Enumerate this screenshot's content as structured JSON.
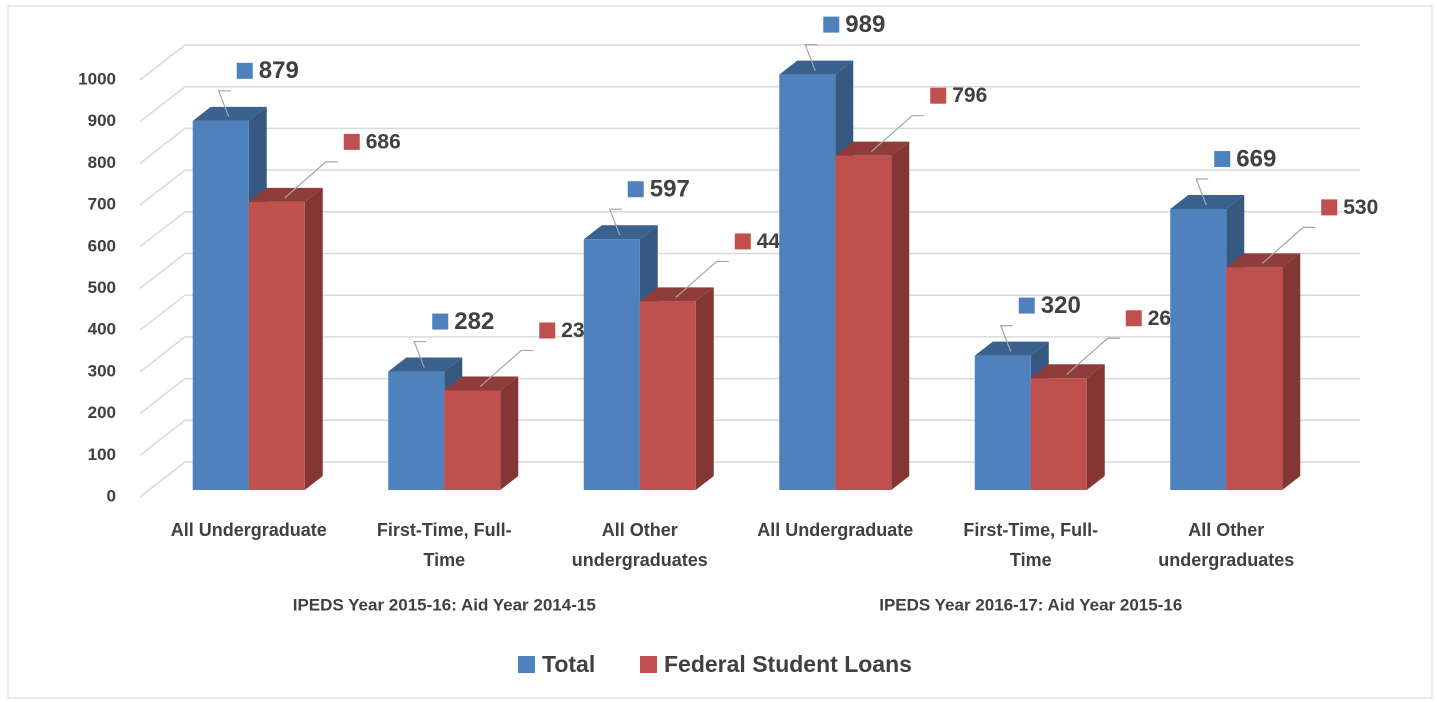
{
  "chart_data": {
    "type": "bar3d",
    "categories": [
      "All Undergraduate",
      "First-Time, Full-Time",
      "All Other undergraduates",
      "All Undergraduate",
      "First-Time, Full-Time",
      "All Other undergraduates"
    ],
    "group_labels": [
      "IPEDS Year 2015-16: Aid Year 2014-15",
      "IPEDS Year 2016-17: Aid Year 2015-16"
    ],
    "series": [
      {
        "name": "Total",
        "color": "#4f81bd",
        "values": [
          879,
          282,
          597,
          989,
          320,
          669
        ]
      },
      {
        "name": "Federal Student Loans",
        "color": "#c0504d",
        "values": [
          686,
          237,
          449,
          796,
          266,
          530
        ]
      }
    ],
    "ylim": [
      0,
      1000
    ],
    "yticks": [
      0,
      100,
      200,
      300,
      400,
      500,
      600,
      700,
      800,
      900,
      1000
    ],
    "grid": true,
    "legend": "bottom"
  }
}
